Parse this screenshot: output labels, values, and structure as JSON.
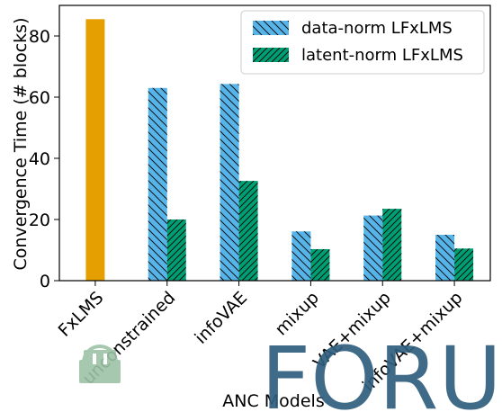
{
  "chart_data": {
    "type": "bar",
    "categories": [
      "FxLMS",
      "unconstrained",
      "infoVAE",
      "mixup",
      "VAE+mixup",
      "infoVAE+mixup"
    ],
    "series": [
      {
        "name": "FxLMS",
        "values": [
          85.5,
          null,
          null,
          null,
          null,
          null
        ],
        "color": "#e69f00",
        "hatch": "none"
      },
      {
        "name": "data-norm LFxLMS",
        "values": [
          null,
          63,
          64.3,
          16.1,
          21.3,
          15
        ],
        "color": "#56b4e9",
        "hatch": "backslash"
      },
      {
        "name": "latent-norm LFxLMS",
        "values": [
          null,
          20,
          32.6,
          10.3,
          23.5,
          10.5
        ],
        "color": "#009e73",
        "hatch": "slash"
      }
    ],
    "legend": [
      "data-norm LFxLMS",
      "latent-norm LFxLMS"
    ],
    "legend_position": "top-right",
    "xlabel": "ANC Models",
    "ylabel": "Convergence Time (# blocks)",
    "ylim": [
      0,
      90
    ],
    "yticks": [
      "0",
      "20",
      "40",
      "60",
      "80"
    ],
    "grid": false
  },
  "watermark": {
    "text": "FORUM",
    "color": "#2f5f7e",
    "logo_color": "#9cc3a6"
  }
}
